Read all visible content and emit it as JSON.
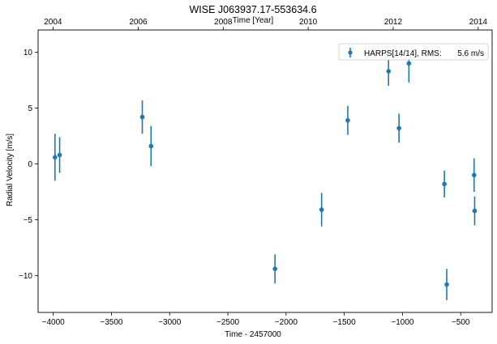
{
  "chart_data": {
    "type": "scatter",
    "title": "WISE J063937.17-553634.6",
    "xlabel": "Time - 2457000",
    "ylabel": "Radial Velocity [m/s]",
    "top_xlabel": "Time [Year]",
    "xlim": [
      -4130,
      -230
    ],
    "ylim": [
      -13.3,
      12
    ],
    "xticks": [
      -4000,
      -3500,
      -3000,
      -2500,
      -2000,
      -1500,
      -1000,
      -500
    ],
    "xtick_labels": [
      "−4000",
      "−3500",
      "−3000",
      "−2500",
      "−2000",
      "−1500",
      "−1000",
      "−500"
    ],
    "yticks": [
      10,
      5,
      0,
      -5,
      -10
    ],
    "ytick_labels": [
      "10",
      "5",
      "0",
      "−5",
      "−10"
    ],
    "top_xticks": [
      -4002,
      -3270,
      -2540,
      -1810,
      -1080,
      -350
    ],
    "top_xtick_labels": [
      "2004",
      "2006",
      "2008",
      "2010",
      "2012",
      "2014"
    ],
    "grid": false,
    "legend_position": "top-right",
    "legend_label": "HARPS[14/14], RMS:",
    "legend_value": "5.6 m/s",
    "series": [
      {
        "name": "HARPS[14/14]",
        "color": "#1f77b4",
        "x": [
          -3985,
          -3945,
          -3235,
          -3160,
          -2095,
          -1695,
          -1470,
          -1120,
          -1030,
          -945,
          -640,
          -620,
          -385,
          -380
        ],
        "y": [
          0.6,
          0.8,
          4.2,
          1.6,
          -9.4,
          -4.1,
          3.9,
          8.3,
          3.2,
          9.0,
          -1.8,
          -10.8,
          -1.0,
          -4.2
        ],
        "err": [
          2.1,
          1.6,
          1.5,
          1.8,
          1.3,
          1.5,
          1.3,
          1.3,
          1.3,
          1.7,
          1.2,
          1.4,
          1.5,
          1.3
        ]
      }
    ]
  }
}
